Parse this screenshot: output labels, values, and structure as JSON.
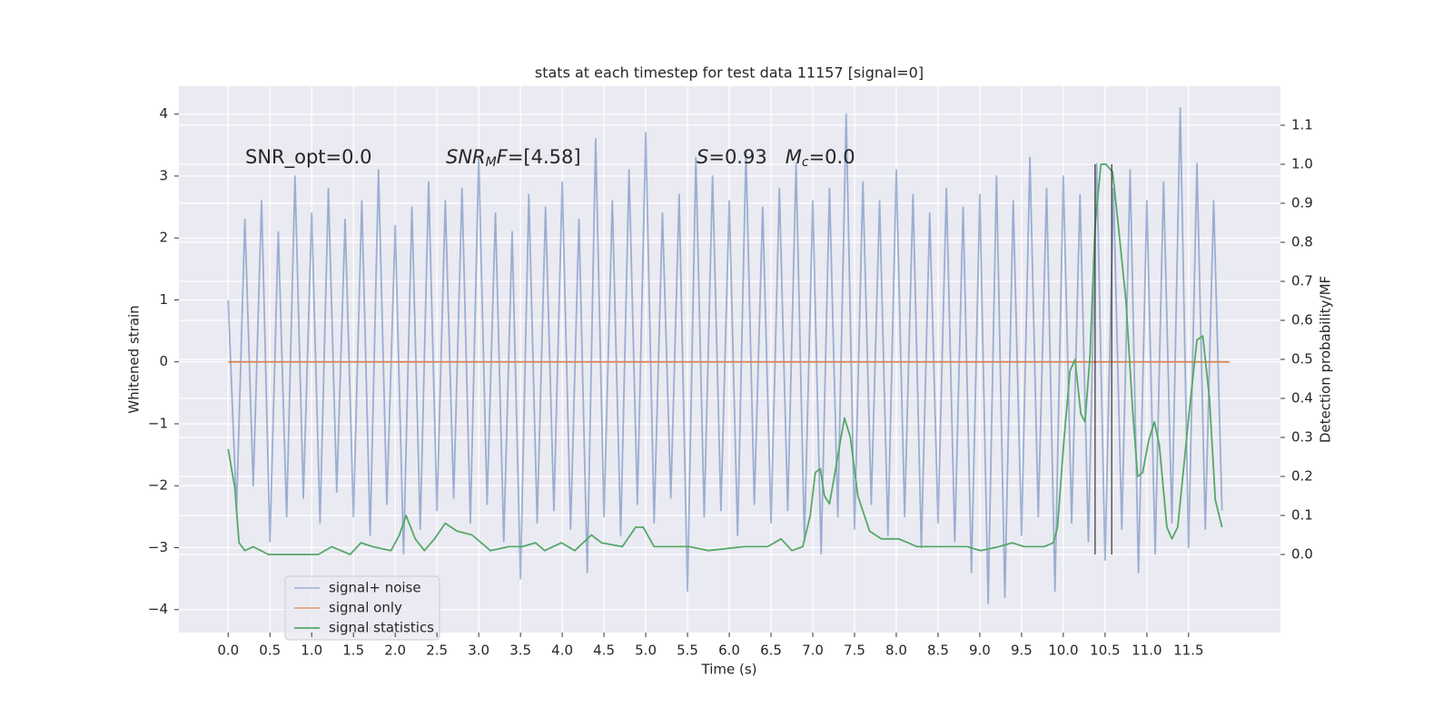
{
  "chart_data": {
    "type": "line",
    "title": "stats at each timestep for test data 11157 [signal=0]",
    "xlabel": "Time (s)",
    "ylabel": "Whitened strain",
    "y2label": "Detection probability/MF",
    "xlim": [
      -0.59,
      12.6
    ],
    "ylim": [
      -4.37,
      4.45
    ],
    "y2lim": [
      -0.2,
      1.2
    ],
    "xticks": [
      {
        "value": 0,
        "label": "0.0"
      },
      0.5,
      {
        "value": 1,
        "label": "1.0"
      },
      1.5,
      {
        "value": 2,
        "label": "2.0"
      },
      2.5,
      {
        "value": 3,
        "label": "3.0"
      },
      3.5,
      {
        "value": 4,
        "label": "4.0"
      },
      4.5,
      {
        "value": 5,
        "label": "5.0"
      },
      5.5,
      {
        "value": 6,
        "label": "6.0"
      },
      6.5,
      {
        "value": 7,
        "label": "7.0"
      },
      7.5,
      {
        "value": 8,
        "label": "8.0"
      },
      8.5,
      {
        "value": 9,
        "label": "9.0"
      },
      9.5,
      {
        "value": 10,
        "label": "10.0"
      },
      10.5,
      {
        "value": 11,
        "label": "11.0"
      },
      11.5
    ],
    "yticks": [
      {
        "value": -4,
        "label": "−4"
      },
      {
        "value": -3,
        "label": "−3"
      },
      {
        "value": -2,
        "label": "−2"
      },
      {
        "value": -1,
        "label": "−1"
      },
      0,
      1,
      2,
      3,
      4
    ],
    "y2ticks": [
      {
        "value": 0,
        "label": "0.0"
      },
      0.1,
      0.2,
      0.3,
      0.4,
      0.5,
      0.6,
      0.7,
      0.8,
      0.9,
      {
        "value": 1,
        "label": "1.0"
      },
      1.1
    ],
    "grid": true,
    "legend": "lower left",
    "series": [
      {
        "name": "signal+ noise",
        "color": "#4c72b0",
        "alpha": 0.5,
        "x": [
          0.0,
          0.1,
          0.2,
          0.3,
          0.4,
          0.5,
          0.6,
          0.7,
          0.8,
          0.9,
          1.0,
          1.1,
          1.2,
          1.3,
          1.4,
          1.5,
          1.6,
          1.7,
          1.8,
          1.9,
          2.0,
          2.1,
          2.2,
          2.3,
          2.4,
          2.5,
          2.6,
          2.7,
          2.8,
          2.9,
          3.0,
          3.1,
          3.2,
          3.3,
          3.4,
          3.5,
          3.6,
          3.7,
          3.8,
          3.9,
          4.0,
          4.1,
          4.2,
          4.3,
          4.4,
          4.5,
          4.6,
          4.7,
          4.8,
          4.9,
          5.0,
          5.1,
          5.2,
          5.3,
          5.4,
          5.5,
          5.6,
          5.7,
          5.8,
          5.9,
          6.0,
          6.1,
          6.2,
          6.3,
          6.4,
          6.5,
          6.6,
          6.7,
          6.8,
          6.9,
          7.0,
          7.1,
          7.2,
          7.3,
          7.4,
          7.5,
          7.6,
          7.7,
          7.8,
          7.9,
          8.0,
          8.1,
          8.2,
          8.3,
          8.4,
          8.5,
          8.6,
          8.7,
          8.8,
          8.9,
          9.0,
          9.1,
          9.2,
          9.3,
          9.4,
          9.5,
          9.6,
          9.7,
          9.8,
          9.9,
          10.0,
          10.1,
          10.2,
          10.3,
          10.4,
          10.5,
          10.6,
          10.7,
          10.8,
          10.9,
          11.0,
          11.1,
          11.2,
          11.3,
          11.4,
          11.5,
          11.6,
          11.7,
          11.8,
          11.9
        ],
        "values": [
          1.0,
          -2.4,
          2.3,
          -2.0,
          2.6,
          -2.9,
          2.1,
          -2.5,
          3.0,
          -2.2,
          2.4,
          -2.6,
          2.8,
          -2.1,
          2.3,
          -2.5,
          2.6,
          -2.8,
          3.1,
          -2.3,
          2.2,
          -3.1,
          2.5,
          -2.7,
          2.9,
          -2.4,
          2.6,
          -2.2,
          2.8,
          -2.6,
          3.3,
          -2.3,
          2.4,
          -2.9,
          2.1,
          -3.5,
          2.7,
          -2.6,
          2.5,
          -2.4,
          2.9,
          -2.7,
          2.3,
          -3.4,
          3.6,
          -2.5,
          2.6,
          -2.8,
          3.1,
          -2.3,
          3.7,
          -2.6,
          2.4,
          -2.2,
          2.7,
          -3.7,
          3.3,
          -2.5,
          3.0,
          -2.4,
          2.6,
          -2.8,
          3.4,
          -2.3,
          2.5,
          -2.6,
          2.8,
          -2.4,
          3.2,
          -2.9,
          2.6,
          -3.1,
          2.8,
          -2.5,
          4.0,
          -2.7,
          2.9,
          -2.3,
          2.6,
          -2.8,
          3.1,
          -2.5,
          2.7,
          -3.0,
          2.4,
          -2.6,
          2.8,
          -2.9,
          2.5,
          -3.4,
          2.7,
          -3.9,
          3.0,
          -3.8,
          2.6,
          -2.8,
          3.3,
          -2.5,
          2.8,
          -3.7,
          3.0,
          -2.6,
          2.7,
          -2.9,
          3.2,
          -3.2,
          2.8,
          -2.7,
          3.1,
          -3.4,
          2.6,
          -3.1,
          2.9,
          -2.6,
          4.1,
          -3.0,
          3.2,
          -2.7,
          2.6,
          -2.4
        ]
      },
      {
        "name": "signal only",
        "color": "#dd8452",
        "alpha": 1,
        "x": [
          0.0,
          11.99
        ],
        "values": [
          0,
          0
        ]
      },
      {
        "name": "signal statistics",
        "color": "#55a868",
        "alpha": 1,
        "axis": "y2",
        "x": [
          0,
          0.08,
          0.13,
          0.2,
          0.3,
          0.48,
          0.75,
          1.08,
          1.24,
          1.46,
          1.59,
          1.73,
          1.95,
          2.05,
          2.13,
          2.24,
          2.35,
          2.47,
          2.6,
          2.74,
          2.92,
          3.03,
          3.14,
          3.36,
          3.52,
          3.68,
          3.79,
          3.99,
          4.15,
          4.35,
          4.47,
          4.72,
          4.88,
          4.97,
          5.1,
          5.32,
          5.53,
          5.75,
          6.18,
          6.46,
          6.62,
          6.75,
          6.88,
          6.97,
          7.03,
          7.09,
          7.14,
          7.2,
          7.25,
          7.33,
          7.38,
          7.45,
          7.54,
          7.68,
          7.82,
          8.03,
          8.14,
          8.25,
          8.68,
          8.85,
          9.01,
          9.23,
          9.39,
          9.53,
          9.77,
          9.88,
          9.93,
          10.01,
          10.08,
          10.14,
          10.21,
          10.26,
          10.32,
          10.38,
          10.45,
          10.51,
          10.59,
          10.66,
          10.75,
          10.83,
          10.89,
          10.95,
          11.02,
          11.09,
          11.15,
          11.24,
          11.3,
          11.37,
          11.51,
          11.6,
          11.67,
          11.75,
          11.82,
          11.9
        ],
        "values": [
          0.27,
          0.17,
          0.03,
          0.01,
          0.02,
          0.0,
          0.0,
          0.0,
          0.02,
          0.0,
          0.03,
          0.02,
          0.01,
          0.05,
          0.1,
          0.04,
          0.01,
          0.04,
          0.08,
          0.06,
          0.05,
          0.03,
          0.01,
          0.02,
          0.02,
          0.03,
          0.01,
          0.03,
          0.01,
          0.05,
          0.03,
          0.02,
          0.07,
          0.07,
          0.02,
          0.02,
          0.02,
          0.01,
          0.02,
          0.02,
          0.04,
          0.01,
          0.02,
          0.1,
          0.21,
          0.22,
          0.15,
          0.13,
          0.19,
          0.29,
          0.35,
          0.3,
          0.15,
          0.06,
          0.04,
          0.04,
          0.03,
          0.02,
          0.02,
          0.02,
          0.01,
          0.02,
          0.03,
          0.02,
          0.02,
          0.03,
          0.07,
          0.3,
          0.47,
          0.5,
          0.36,
          0.34,
          0.51,
          0.84,
          1.0,
          1.0,
          0.98,
          0.84,
          0.65,
          0.37,
          0.2,
          0.21,
          0.29,
          0.34,
          0.28,
          0.07,
          0.04,
          0.07,
          0.37,
          0.55,
          0.56,
          0.4,
          0.14,
          0.07
        ]
      }
    ],
    "vlines": {
      "x": [
        10.38,
        10.58
      ],
      "ymin": 0,
      "ymax": 1,
      "axis": "y2",
      "color": "#333333"
    },
    "annotations": [
      [
        {
          "text": "SNR_opt=0.0"
        }
      ],
      [
        {
          "text": "SNR",
          "style": "italic"
        },
        {
          "text": "M",
          "style": "italic-sub"
        },
        {
          "text": "F",
          "style": "italic"
        },
        {
          "text": "=[4.58]"
        }
      ],
      [
        {
          "text": "S",
          "style": "italic"
        },
        {
          "text": "=0.93   "
        },
        {
          "text": "M",
          "style": "italic"
        },
        {
          "text": "c",
          "style": "italic-sub"
        },
        {
          "text": "=0.0"
        }
      ]
    ]
  }
}
